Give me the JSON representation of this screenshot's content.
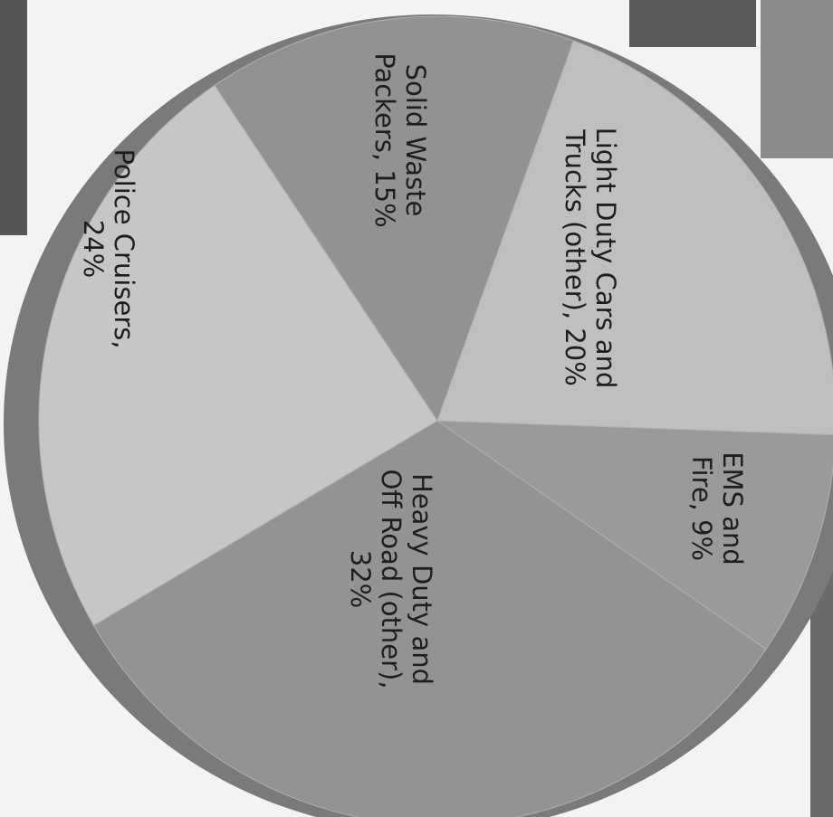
{
  "chart_data": {
    "type": "pie",
    "categories": [
      [
        "EMS and",
        "Fire, 9%"
      ],
      [
        "Heavy Duty and",
        "Off Road (other),",
        "32%"
      ],
      [
        "Police Cruisers,",
        "24%"
      ],
      [
        "Solid Waste",
        "Packers, 15%"
      ],
      [
        "Light Duty Cars and",
        "Trucks (other), 20%"
      ]
    ],
    "values": [
      9,
      32,
      24,
      15,
      20
    ],
    "colors": [
      "#9a9a9a",
      "#939393",
      "#c6c6c6",
      "#929292",
      "#bfbfbf"
    ]
  }
}
